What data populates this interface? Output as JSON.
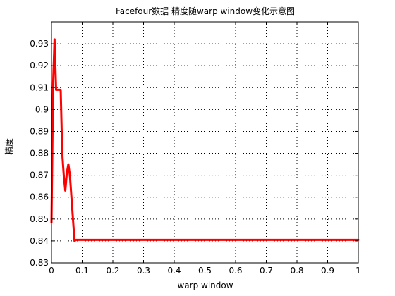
{
  "chart_data": {
    "type": "line",
    "title": "Facefour数据 精度随warp window变化示意图",
    "xlabel": "warp window",
    "ylabel": "精度",
    "xlim": [
      0,
      1
    ],
    "ylim": [
      0.83,
      0.94
    ],
    "xticks": [
      0,
      0.1,
      0.2,
      0.3,
      0.4,
      0.5,
      0.6,
      0.7,
      0.8,
      0.9,
      1
    ],
    "xtick_labels": [
      "0",
      "0.1",
      "0.2",
      "0.3",
      "0.4",
      "0.5",
      "0.6",
      "0.7",
      "0.8",
      "0.9",
      "1"
    ],
    "yticks": [
      0.83,
      0.84,
      0.85,
      0.86,
      0.87,
      0.88,
      0.89,
      0.9,
      0.91,
      0.92,
      0.93
    ],
    "ytick_labels": [
      "0.83",
      "0.84",
      "0.85",
      "0.86",
      "0.87",
      "0.88",
      "0.89",
      "0.9",
      "0.91",
      "0.92",
      "0.93"
    ],
    "grid": true,
    "legend": false,
    "series": [
      {
        "color": "#ff0000",
        "x": [
          0,
          0.005,
          0.01,
          0.015,
          0.02,
          0.025,
          0.03,
          0.035,
          0.04,
          0.045,
          0.05,
          0.055,
          0.06,
          0.065,
          0.07,
          0.075,
          0.08,
          0.085,
          0.09,
          0.1,
          0.2,
          0.3,
          0.4,
          0.5,
          0.6,
          0.7,
          0.8,
          0.9,
          1
        ],
        "y": [
          0.8485,
          0.91,
          0.932,
          0.909,
          0.909,
          0.909,
          0.909,
          0.88,
          0.87,
          0.863,
          0.871,
          0.875,
          0.87,
          0.86,
          0.85,
          0.84,
          0.8405,
          0.8405,
          0.8405,
          0.8405,
          0.8405,
          0.8405,
          0.8405,
          0.8405,
          0.8405,
          0.8405,
          0.8405,
          0.8405,
          0.8405
        ]
      }
    ]
  }
}
